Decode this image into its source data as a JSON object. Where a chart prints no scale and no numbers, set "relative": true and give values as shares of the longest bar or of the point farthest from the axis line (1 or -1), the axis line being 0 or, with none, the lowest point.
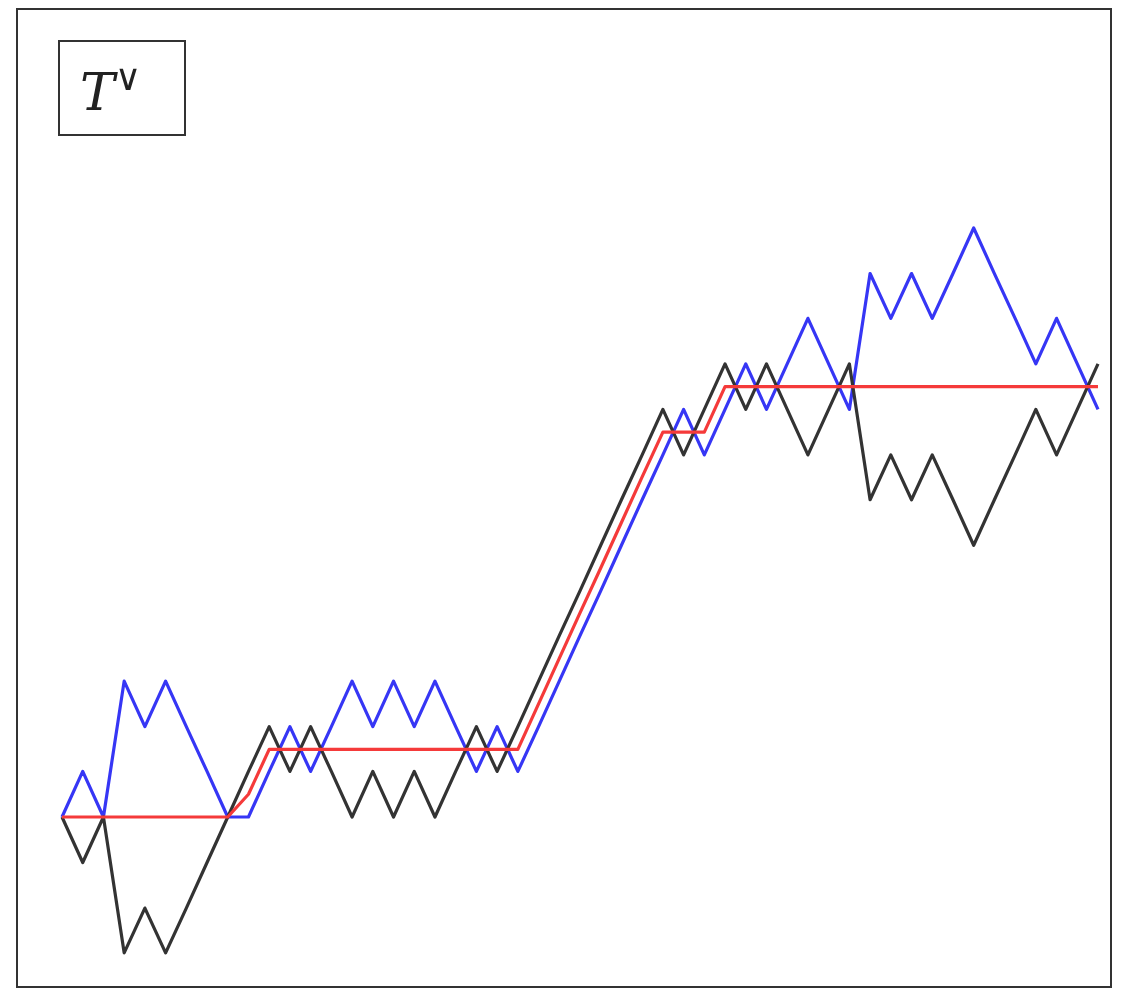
{
  "chart_data": {
    "type": "line",
    "title": "T$^{∨}$",
    "relative": true,
    "marker": "none",
    "line_style": "solid",
    "categories": [
      null,
      null,
      null,
      null,
      null,
      null,
      null,
      null,
      null,
      null,
      null,
      null,
      null,
      null,
      null,
      null,
      null,
      null,
      null,
      null,
      null,
      null,
      null,
      null,
      null,
      null,
      null,
      null,
      null,
      null,
      null,
      null,
      null,
      null,
      null,
      null,
      null,
      null,
      null,
      null,
      null,
      null,
      null,
      null,
      null,
      null,
      null,
      null,
      null,
      null,
      null
    ],
    "series": [
      {
        "color": "#3636f5",
        "values": [
          0.224,
          0.284,
          0.224,
          0.403,
          0.343,
          0.403,
          0.343,
          0.284,
          0.224,
          0.224,
          0.284,
          0.343,
          0.284,
          0.343,
          0.403,
          0.343,
          0.403,
          0.343,
          0.403,
          0.343,
          0.284,
          0.343,
          0.284,
          0.343,
          0.403,
          0.463,
          0.522,
          0.582,
          0.642,
          0.701,
          0.761,
          0.701,
          0.761,
          0.821,
          0.761,
          0.821,
          0.881,
          0.821,
          0.761,
          0.94,
          0.881,
          0.94,
          0.881,
          0.94,
          1,
          0.94,
          0.881,
          0.821,
          0.881,
          0.821,
          0.761
        ]
      },
      {
        "color": "#333333",
        "values": [
          0.224,
          0.164,
          0.224,
          0.045,
          0.104,
          0.045,
          0.104,
          0.164,
          0.224,
          0.284,
          0.343,
          0.284,
          0.343,
          0.284,
          0.224,
          0.284,
          0.224,
          0.284,
          0.224,
          0.284,
          0.343,
          0.284,
          0.343,
          0.403,
          0.463,
          0.522,
          0.582,
          0.642,
          0.701,
          0.761,
          0.701,
          0.761,
          0.821,
          0.761,
          0.821,
          0.761,
          0.701,
          0.761,
          0.821,
          0.642,
          0.701,
          0.642,
          0.701,
          0.642,
          0.582,
          0.642,
          0.701,
          0.761,
          0.701,
          0.761,
          0.821
        ]
      },
      {
        "color": "#f53a3a",
        "values": [
          0.224,
          0.224,
          0.224,
          0.224,
          0.224,
          0.224,
          0.224,
          0.224,
          0.224,
          0.254,
          0.313,
          0.313,
          0.313,
          0.313,
          0.313,
          0.313,
          0.313,
          0.313,
          0.313,
          0.313,
          0.313,
          0.313,
          0.313,
          0.373,
          0.433,
          0.493,
          0.552,
          0.612,
          0.672,
          0.731,
          0.731,
          0.731,
          0.791,
          0.791,
          0.791,
          0.791,
          0.791,
          0.791,
          0.791,
          0.791,
          0.791,
          0.791,
          0.791,
          0.791,
          0.791,
          0.791,
          0.791,
          0.791,
          0.791,
          0.791,
          0.791
        ]
      }
    ]
  }
}
